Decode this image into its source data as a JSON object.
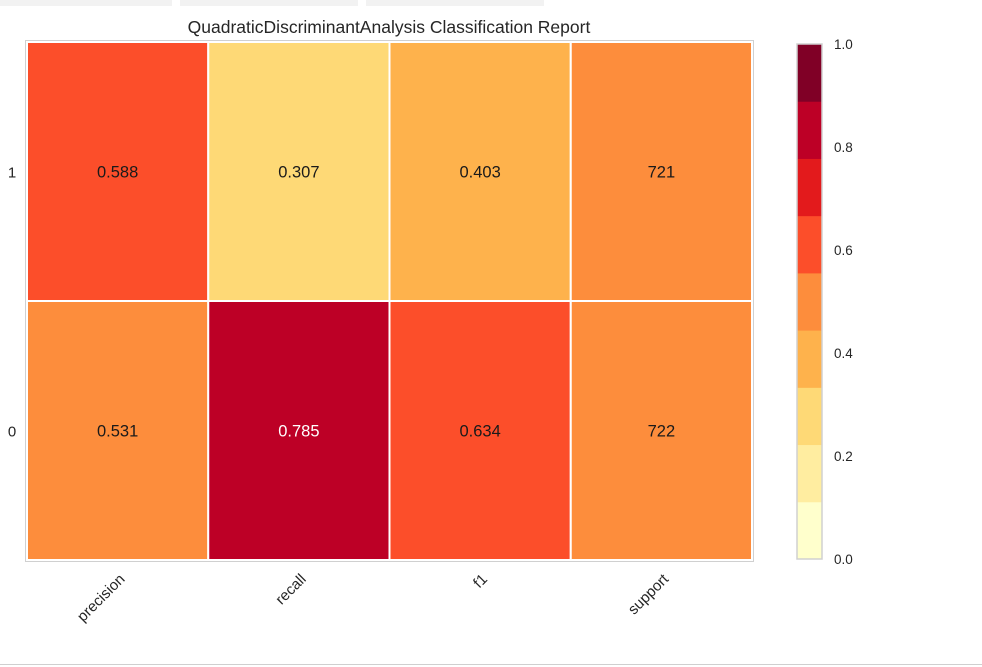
{
  "chart_data": {
    "type": "heatmap",
    "title": "QuadraticDiscriminantAnalysis Classification Report",
    "columns": [
      "precision",
      "recall",
      "f1",
      "support"
    ],
    "rows": [
      "1",
      "0"
    ],
    "values": [
      [
        "0.588",
        "0.307",
        "0.403",
        "721"
      ],
      [
        "0.531",
        "0.785",
        "0.634",
        "722"
      ]
    ],
    "color_scores": [
      [
        0.588,
        0.307,
        0.403,
        0.5
      ],
      [
        0.531,
        0.785,
        0.634,
        0.5
      ]
    ],
    "colorbar": {
      "range": [
        0.0,
        1.0
      ],
      "ticks": [
        "0.0",
        "0.2",
        "0.4",
        "0.6",
        "0.8",
        "1.0"
      ],
      "palette": [
        "#ffffcc",
        "#ffeda0",
        "#fed976",
        "#feb24c",
        "#fd8d3c",
        "#fc4e2a",
        "#e31a1c",
        "#bd0026",
        "#800026"
      ]
    }
  }
}
